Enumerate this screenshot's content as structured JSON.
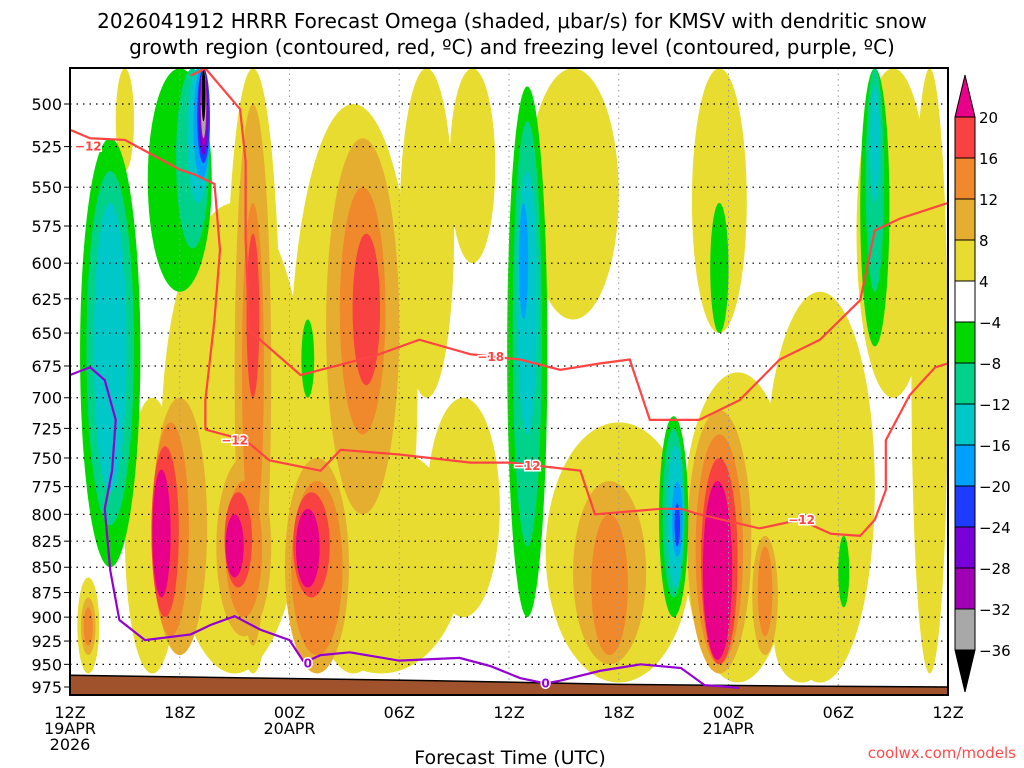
{
  "chart_data": {
    "type": "heatmap",
    "title_line1": "2026041912 HRRR Forecast Omega (shaded, μbar/s) for KMSV with dendritic snow",
    "title_line2": "growth region (contoured, red, ºC) and freezing level (contoured, purple, ºC)",
    "xlabel": "Forecast Time (UTC)",
    "ylabel": "",
    "credit": "coolwx.com/models",
    "xlim_hours": [
      0,
      48
    ],
    "ylim_hpa": [
      480,
      984
    ],
    "x_ticks": [
      {
        "h": 0,
        "l1": "12Z",
        "l2": "19APR",
        "l3": "2026"
      },
      {
        "h": 6,
        "l1": "18Z"
      },
      {
        "h": 12,
        "l1": "00Z",
        "l2": "20APR"
      },
      {
        "h": 18,
        "l1": "06Z"
      },
      {
        "h": 24,
        "l1": "12Z"
      },
      {
        "h": 30,
        "l1": "18Z"
      },
      {
        "h": 36,
        "l1": "00Z",
        "l2": "21APR"
      },
      {
        "h": 42,
        "l1": "06Z"
      },
      {
        "h": 48,
        "l1": "12Z"
      }
    ],
    "y_ticks": [
      "500",
      "525",
      "550",
      "575",
      "600",
      "625",
      "650",
      "675",
      "700",
      "725",
      "750",
      "775",
      "800",
      "825",
      "850",
      "875",
      "900",
      "925",
      "950",
      "975"
    ],
    "colorbar": {
      "labels": [
        "20",
        "16",
        "12",
        "8",
        "4",
        "−4",
        "−8",
        "−12",
        "−16",
        "−20",
        "−24",
        "−28",
        "−32",
        "−36"
      ],
      "above_color": "#e8008a",
      "below_color": "#000000",
      "colors": [
        "#f84242",
        "#f0882c",
        "#e6ae30",
        "#e8dc30",
        "#ffffff",
        "#00d800",
        "#00d28c",
        "#00c8c8",
        "#00a0ff",
        "#1e3cff",
        "#7800d8",
        "#a000b4",
        "#a8a8a8"
      ]
    },
    "level_colors": {
      "22": "#e8008a",
      "18": "#f84242",
      "14": "#f0882c",
      "10": "#e6ae30",
      "6": "#e8dc30",
      "-6": "#00d800",
      "-10": "#00d28c",
      "-14": "#00c8c8",
      "-18": "#00a0ff",
      "-22": "#1e3cff",
      "-26": "#7800d8",
      "-30": "#a000b4",
      "-34": "#a8a8a8",
      "-38": "#000000"
    },
    "omega_features_note": "each feature: [hour_center, hour_width, p_top_hPa, p_bottom_hPa, omega_level]",
    "omega_features": [
      [
        9,
        8,
        560,
        960,
        6
      ],
      [
        10,
        3,
        480,
        960,
        6
      ],
      [
        15.5,
        7,
        500,
        960,
        6
      ],
      [
        19.5,
        3,
        480,
        700,
        6
      ],
      [
        17,
        9,
        740,
        960,
        6
      ],
      [
        4.5,
        3,
        700,
        960,
        6
      ],
      [
        1,
        1.2,
        860,
        960,
        6
      ],
      [
        21.5,
        4,
        700,
        900,
        6
      ],
      [
        27.5,
        5,
        480,
        640,
        6
      ],
      [
        30,
        8,
        720,
        970,
        6
      ],
      [
        36.5,
        6,
        680,
        970,
        6
      ],
      [
        41,
        6,
        620,
        970,
        6
      ],
      [
        45,
        4,
        480,
        700,
        6
      ],
      [
        47,
        2,
        480,
        960,
        6
      ],
      [
        3,
        1,
        480,
        540,
        6
      ],
      [
        22,
        2.5,
        480,
        600,
        6
      ],
      [
        35.5,
        3,
        480,
        650,
        6
      ],
      [
        40,
        3,
        880,
        970,
        6
      ],
      [
        10,
        2,
        500,
        930,
        10
      ],
      [
        16,
        4,
        520,
        800,
        10
      ],
      [
        6,
        3,
        700,
        940,
        10
      ],
      [
        9.5,
        3,
        750,
        920,
        10
      ],
      [
        13.5,
        3.5,
        750,
        960,
        10
      ],
      [
        29.5,
        4,
        770,
        950,
        10
      ],
      [
        35.5,
        3.5,
        710,
        960,
        10
      ],
      [
        38,
        1.4,
        820,
        940,
        10
      ],
      [
        1,
        0.8,
        880,
        940,
        10
      ],
      [
        10,
        1.2,
        560,
        820,
        14
      ],
      [
        16,
        2.5,
        550,
        730,
        14
      ],
      [
        5.5,
        2,
        720,
        920,
        14
      ],
      [
        9.5,
        2,
        770,
        900,
        14
      ],
      [
        13.5,
        2.8,
        770,
        940,
        14
      ],
      [
        29.5,
        2,
        800,
        940,
        14
      ],
      [
        35.5,
        2.6,
        730,
        950,
        14
      ],
      [
        38,
        0.8,
        830,
        920,
        14
      ],
      [
        1,
        0.5,
        890,
        930,
        14
      ],
      [
        10,
        0.7,
        580,
        700,
        18
      ],
      [
        16.2,
        1.5,
        580,
        690,
        18
      ],
      [
        5.2,
        1.5,
        740,
        900,
        18
      ],
      [
        9.2,
        1.5,
        780,
        870,
        18
      ],
      [
        13.2,
        2,
        780,
        880,
        18
      ],
      [
        35.5,
        2,
        750,
        950,
        18
      ],
      [
        5,
        1,
        760,
        880,
        22
      ],
      [
        9,
        1,
        800,
        860,
        22
      ],
      [
        13,
        1.3,
        795,
        870,
        22
      ],
      [
        35.4,
        1.6,
        770,
        945,
        22
      ],
      [
        2.2,
        3.3,
        520,
        850,
        -6
      ],
      [
        6,
        3.5,
        480,
        620,
        -6
      ],
      [
        25,
        2.2,
        490,
        900,
        -6
      ],
      [
        33,
        1.6,
        715,
        900,
        -6
      ],
      [
        35.5,
        1,
        560,
        650,
        -6
      ],
      [
        44,
        1.6,
        480,
        660,
        -6
      ],
      [
        13,
        0.7,
        640,
        700,
        -6
      ],
      [
        42.3,
        0.6,
        820,
        890,
        -6
      ],
      [
        2.2,
        2.6,
        540,
        810,
        -10
      ],
      [
        6.7,
        1.8,
        480,
        590,
        -10
      ],
      [
        25,
        1.6,
        510,
        830,
        -10
      ],
      [
        33,
        1.2,
        725,
        880,
        -10
      ],
      [
        44,
        1,
        480,
        620,
        -10
      ],
      [
        2.2,
        1.8,
        560,
        780,
        -14
      ],
      [
        7,
        1.2,
        480,
        560,
        -14
      ],
      [
        25,
        1.1,
        540,
        730,
        -14
      ],
      [
        33.1,
        0.9,
        740,
        870,
        -14
      ],
      [
        44,
        0.5,
        490,
        560,
        -14
      ],
      [
        7.2,
        0.9,
        480,
        545,
        -18
      ],
      [
        24.8,
        0.5,
        560,
        640,
        -18
      ],
      [
        33.2,
        0.6,
        770,
        840,
        -18
      ],
      [
        7.3,
        0.7,
        480,
        535,
        -22
      ],
      [
        33.2,
        0.3,
        790,
        830,
        -22
      ],
      [
        7.3,
        0.55,
        480,
        530,
        -26
      ],
      [
        7.3,
        0.4,
        480,
        525,
        -30
      ],
      [
        7.3,
        0.3,
        480,
        520,
        -34
      ],
      [
        7.3,
        0.22,
        480,
        510,
        -38
      ]
    ],
    "terrain_hpa": [
      [
        0,
        962
      ],
      [
        10,
        965
      ],
      [
        20,
        968
      ],
      [
        30,
        972
      ],
      [
        40,
        974
      ],
      [
        48,
        975
      ]
    ],
    "terrain_color": "#a0522d",
    "contours": [
      {
        "name": "dgz-minus12-upper",
        "color": "#ff4444",
        "value": -12,
        "points": [
          [
            0,
            515
          ],
          [
            1.1,
            520
          ],
          [
            3,
            521
          ],
          [
            6,
            539
          ],
          [
            6.8,
            542
          ],
          [
            7.9,
            548
          ],
          [
            8.2,
            591
          ],
          [
            7.9,
            640
          ],
          [
            7.4,
            702
          ],
          [
            7.4,
            726
          ]
        ]
      },
      {
        "name": "dgz-minus18",
        "color": "#ff4444",
        "value": -18,
        "points": [
          [
            6.6,
            484
          ],
          [
            7.4,
            480
          ],
          [
            9.3,
            503
          ],
          [
            9.6,
            534
          ],
          [
            9.6,
            584
          ],
          [
            9.8,
            648
          ],
          [
            12.6,
            682
          ],
          [
            14.8,
            674
          ],
          [
            16.9,
            666
          ],
          [
            19.1,
            655
          ],
          [
            21.9,
            666
          ],
          [
            24.6,
            670
          ],
          [
            26.8,
            678
          ],
          [
            29,
            673
          ],
          [
            30.6,
            670
          ],
          [
            31.7,
            718
          ],
          [
            34.4,
            718
          ],
          [
            36.6,
            702
          ],
          [
            38.8,
            670
          ],
          [
            41,
            655
          ],
          [
            43.2,
            626
          ],
          [
            44,
            578
          ],
          [
            45.4,
            570
          ],
          [
            48,
            560
          ]
        ]
      },
      {
        "name": "dgz-minus12-lower",
        "color": "#ff4444",
        "value": -12,
        "points": [
          [
            7.4,
            726
          ],
          [
            9.6,
            735
          ],
          [
            10.9,
            752
          ],
          [
            13.7,
            761
          ],
          [
            14.8,
            743
          ],
          [
            18,
            747
          ],
          [
            21.9,
            754
          ],
          [
            24.1,
            754
          ],
          [
            27.9,
            761
          ],
          [
            28.7,
            800
          ],
          [
            32.3,
            795
          ],
          [
            33.4,
            795
          ],
          [
            34.4,
            800
          ],
          [
            37.7,
            813
          ],
          [
            39.9,
            805
          ],
          [
            41.6,
            818
          ],
          [
            43.2,
            820
          ],
          [
            44,
            805
          ],
          [
            44.6,
            778
          ],
          [
            44.6,
            735
          ],
          [
            45.9,
            698
          ],
          [
            47.3,
            676
          ],
          [
            48,
            673
          ]
        ]
      },
      {
        "name": "freezing-level",
        "color": "#9400d3",
        "value": 0,
        "points": [
          [
            0,
            682
          ],
          [
            1.1,
            676
          ],
          [
            1.9,
            686
          ],
          [
            2.5,
            718
          ],
          [
            2.3,
            761
          ],
          [
            1.9,
            795
          ],
          [
            2.2,
            853
          ],
          [
            2.7,
            903
          ],
          [
            4.1,
            924
          ],
          [
            6.6,
            918
          ],
          [
            7.7,
            908
          ],
          [
            9,
            899
          ],
          [
            10.4,
            913
          ],
          [
            12,
            924
          ],
          [
            12.8,
            948
          ],
          [
            13.7,
            940
          ],
          [
            15.3,
            937
          ],
          [
            18,
            946
          ],
          [
            21.3,
            943
          ],
          [
            23,
            952
          ],
          [
            24.6,
            965
          ],
          [
            26,
            971
          ],
          [
            26.8,
            968
          ],
          [
            29,
            957
          ],
          [
            31.2,
            950
          ],
          [
            33.4,
            954
          ],
          [
            34.7,
            973
          ],
          [
            35.5,
            974
          ],
          [
            36.6,
            976
          ]
        ]
      }
    ],
    "contour_labels": [
      {
        "text": "−12",
        "h": 1,
        "p": 525,
        "color": "#ff4444"
      },
      {
        "text": "−12",
        "h": 9,
        "p": 735,
        "color": "#ff4444"
      },
      {
        "text": "−18",
        "h": 23,
        "p": 668,
        "color": "#ff4444"
      },
      {
        "text": "−12",
        "h": 25,
        "p": 757,
        "color": "#ff4444"
      },
      {
        "text": "−12",
        "h": 40,
        "p": 805,
        "color": "#ff4444"
      },
      {
        "text": "0",
        "h": 13,
        "p": 949,
        "color": "#9400d3"
      },
      {
        "text": "0",
        "h": 26,
        "p": 971,
        "color": "#9400d3"
      }
    ]
  }
}
